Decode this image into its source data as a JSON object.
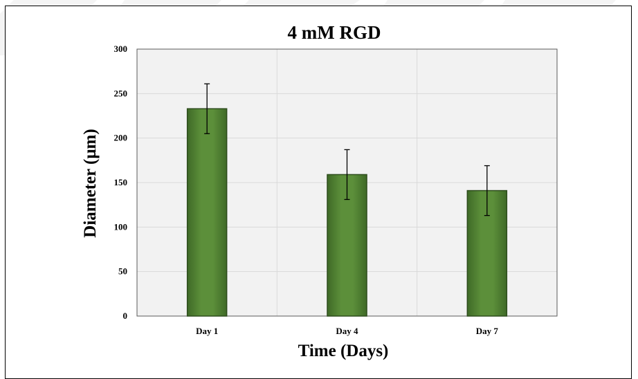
{
  "chart_data": {
    "type": "bar",
    "title": "4 mM RGD",
    "xlabel": "Time (Days)",
    "ylabel": "Diameter (μm)",
    "categories": [
      "Day 1",
      "Day 4",
      "Day 7"
    ],
    "values": [
      233,
      159,
      141
    ],
    "error": [
      28,
      28,
      28
    ],
    "ylim": [
      0,
      300
    ],
    "yticks": [
      0,
      50,
      100,
      150,
      200,
      250,
      300
    ],
    "grid": true,
    "bar_color": "#548235",
    "bar_edge_color": "#2e4d1d",
    "plot_background": "#f2f2f2"
  }
}
